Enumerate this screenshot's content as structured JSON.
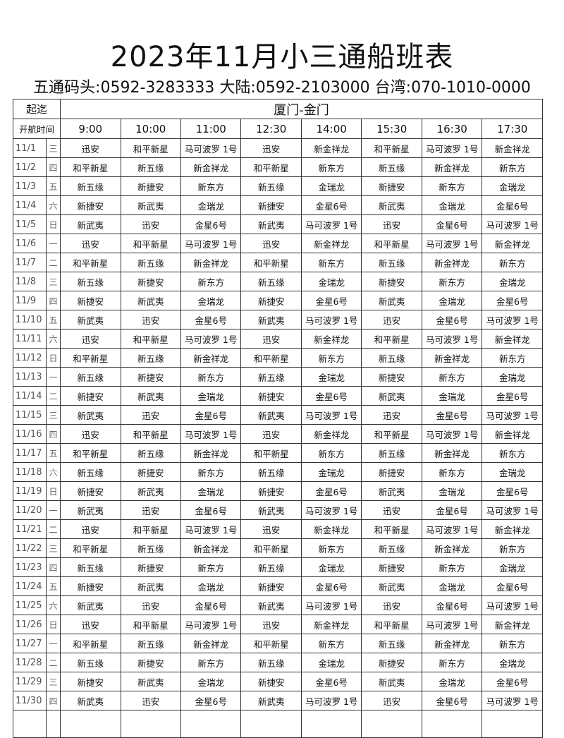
{
  "title": "2023年11月小三通船班表",
  "contacts": "五通码头:0592-3283333 大陆:0592-2103000 台湾:070-1010-0000",
  "header": {
    "range_label": "起迄",
    "route": "厦门-金门",
    "time_label": "开航时间",
    "times": [
      "9:00",
      "10:00",
      "11:00",
      "12:30",
      "14:00",
      "15:30",
      "16:30",
      "17:30"
    ]
  },
  "rows": [
    {
      "date": "11/1",
      "weekday": "三",
      "ships": [
        "迅安",
        "和平新星",
        "马可波罗 1号",
        "迅安",
        "新金祥龙",
        "和平新星",
        "马可波罗 1号",
        "新金祥龙"
      ]
    },
    {
      "date": "11/2",
      "weekday": "四",
      "ships": [
        "和平新星",
        "新五缘",
        "新金祥龙",
        "和平新星",
        "新东方",
        "新五缘",
        "新金祥龙",
        "新东方"
      ]
    },
    {
      "date": "11/3",
      "weekday": "五",
      "ships": [
        "新五缘",
        "新捷安",
        "新东方",
        "新五缘",
        "金瑞龙",
        "新捷安",
        "新东方",
        "金瑞龙"
      ]
    },
    {
      "date": "11/4",
      "weekday": "六",
      "ships": [
        "新捷安",
        "新武夷",
        "金瑞龙",
        "新捷安",
        "金星6号",
        "新武夷",
        "金瑞龙",
        "金星6号"
      ]
    },
    {
      "date": "11/5",
      "weekday": "日",
      "ships": [
        "新武夷",
        "迅安",
        "金星6号",
        "新武夷",
        "马可波罗 1号",
        "迅安",
        "金星6号",
        "马可波罗 1号"
      ]
    },
    {
      "date": "11/6",
      "weekday": "一",
      "ships": [
        "迅安",
        "和平新星",
        "马可波罗 1号",
        "迅安",
        "新金祥龙",
        "和平新星",
        "马可波罗 1号",
        "新金祥龙"
      ]
    },
    {
      "date": "11/7",
      "weekday": "二",
      "ships": [
        "和平新星",
        "新五缘",
        "新金祥龙",
        "和平新星",
        "新东方",
        "新五缘",
        "新金祥龙",
        "新东方"
      ]
    },
    {
      "date": "11/8",
      "weekday": "三",
      "ships": [
        "新五缘",
        "新捷安",
        "新东方",
        "新五缘",
        "金瑞龙",
        "新捷安",
        "新东方",
        "金瑞龙"
      ]
    },
    {
      "date": "11/9",
      "weekday": "四",
      "ships": [
        "新捷安",
        "新武夷",
        "金瑞龙",
        "新捷安",
        "金星6号",
        "新武夷",
        "金瑞龙",
        "金星6号"
      ]
    },
    {
      "date": "11/10",
      "weekday": "五",
      "ships": [
        "新武夷",
        "迅安",
        "金星6号",
        "新武夷",
        "马可波罗 1号",
        "迅安",
        "金星6号",
        "马可波罗 1号"
      ]
    },
    {
      "date": "11/11",
      "weekday": "六",
      "ships": [
        "迅安",
        "和平新星",
        "马可波罗 1号",
        "迅安",
        "新金祥龙",
        "和平新星",
        "马可波罗 1号",
        "新金祥龙"
      ]
    },
    {
      "date": "11/12",
      "weekday": "日",
      "ships": [
        "和平新星",
        "新五缘",
        "新金祥龙",
        "和平新星",
        "新东方",
        "新五缘",
        "新金祥龙",
        "新东方"
      ]
    },
    {
      "date": "11/13",
      "weekday": "一",
      "ships": [
        "新五缘",
        "新捷安",
        "新东方",
        "新五缘",
        "金瑞龙",
        "新捷安",
        "新东方",
        "金瑞龙"
      ]
    },
    {
      "date": "11/14",
      "weekday": "二",
      "ships": [
        "新捷安",
        "新武夷",
        "金瑞龙",
        "新捷安",
        "金星6号",
        "新武夷",
        "金瑞龙",
        "金星6号"
      ]
    },
    {
      "date": "11/15",
      "weekday": "三",
      "ships": [
        "新武夷",
        "迅安",
        "金星6号",
        "新武夷",
        "马可波罗 1号",
        "迅安",
        "金星6号",
        "马可波罗 1号"
      ]
    },
    {
      "date": "11/16",
      "weekday": "四",
      "ships": [
        "迅安",
        "和平新星",
        "马可波罗 1号",
        "迅安",
        "新金祥龙",
        "和平新星",
        "马可波罗 1号",
        "新金祥龙"
      ]
    },
    {
      "date": "11/17",
      "weekday": "五",
      "ships": [
        "和平新星",
        "新五缘",
        "新金祥龙",
        "和平新星",
        "新东方",
        "新五缘",
        "新金祥龙",
        "新东方"
      ]
    },
    {
      "date": "11/18",
      "weekday": "六",
      "ships": [
        "新五缘",
        "新捷安",
        "新东方",
        "新五缘",
        "金瑞龙",
        "新捷安",
        "新东方",
        "金瑞龙"
      ]
    },
    {
      "date": "11/19",
      "weekday": "日",
      "ships": [
        "新捷安",
        "新武夷",
        "金瑞龙",
        "新捷安",
        "金星6号",
        "新武夷",
        "金瑞龙",
        "金星6号"
      ]
    },
    {
      "date": "11/20",
      "weekday": "一",
      "ships": [
        "新武夷",
        "迅安",
        "金星6号",
        "新武夷",
        "马可波罗 1号",
        "迅安",
        "金星6号",
        "马可波罗 1号"
      ]
    },
    {
      "date": "11/21",
      "weekday": "二",
      "ships": [
        "迅安",
        "和平新星",
        "马可波罗 1号",
        "迅安",
        "新金祥龙",
        "和平新星",
        "马可波罗 1号",
        "新金祥龙"
      ]
    },
    {
      "date": "11/22",
      "weekday": "三",
      "ships": [
        "和平新星",
        "新五缘",
        "新金祥龙",
        "和平新星",
        "新东方",
        "新五缘",
        "新金祥龙",
        "新东方"
      ]
    },
    {
      "date": "11/23",
      "weekday": "四",
      "ships": [
        "新五缘",
        "新捷安",
        "新东方",
        "新五缘",
        "金瑞龙",
        "新捷安",
        "新东方",
        "金瑞龙"
      ]
    },
    {
      "date": "11/24",
      "weekday": "五",
      "ships": [
        "新捷安",
        "新武夷",
        "金瑞龙",
        "新捷安",
        "金星6号",
        "新武夷",
        "金瑞龙",
        "金星6号"
      ]
    },
    {
      "date": "11/25",
      "weekday": "六",
      "ships": [
        "新武夷",
        "迅安",
        "金星6号",
        "新武夷",
        "马可波罗 1号",
        "迅安",
        "金星6号",
        "马可波罗 1号"
      ]
    },
    {
      "date": "11/26",
      "weekday": "日",
      "ships": [
        "迅安",
        "和平新星",
        "马可波罗 1号",
        "迅安",
        "新金祥龙",
        "和平新星",
        "马可波罗 1号",
        "新金祥龙"
      ]
    },
    {
      "date": "11/27",
      "weekday": "一",
      "ships": [
        "和平新星",
        "新五缘",
        "新金祥龙",
        "和平新星",
        "新东方",
        "新五缘",
        "新金祥龙",
        "新东方"
      ]
    },
    {
      "date": "11/28",
      "weekday": "二",
      "ships": [
        "新五缘",
        "新捷安",
        "新东方",
        "新五缘",
        "金瑞龙",
        "新捷安",
        "新东方",
        "金瑞龙"
      ]
    },
    {
      "date": "11/29",
      "weekday": "三",
      "ships": [
        "新捷安",
        "新武夷",
        "金瑞龙",
        "新捷安",
        "金星6号",
        "新武夷",
        "金瑞龙",
        "金星6号"
      ]
    },
    {
      "date": "11/30",
      "weekday": "四",
      "ships": [
        "新武夷",
        "迅安",
        "金星6号",
        "新武夷",
        "马可波罗 1号",
        "迅安",
        "金星6号",
        "马可波罗 1号"
      ]
    }
  ]
}
